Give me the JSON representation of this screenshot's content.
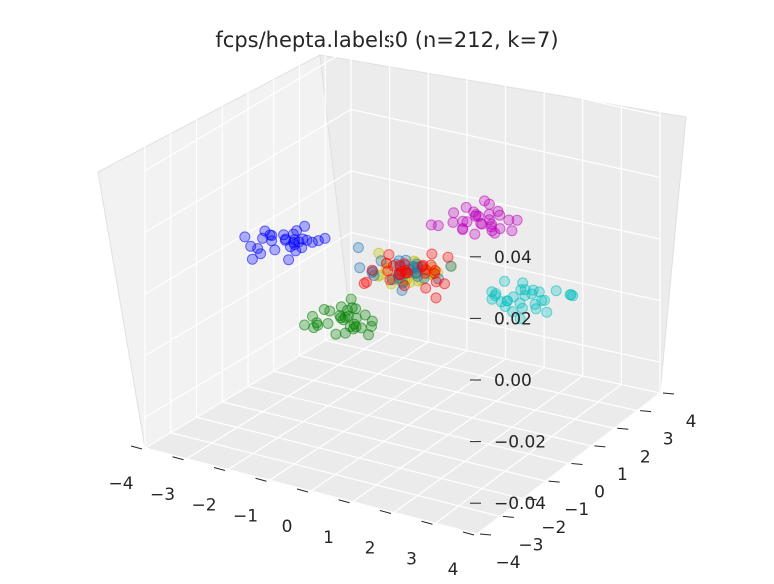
{
  "chart_data": {
    "type": "scatter",
    "projection": "3d",
    "title": "fcps/hepta.labels0 (n=212, k=7)",
    "xlim": [
      -4,
      4
    ],
    "ylim": [
      -4,
      4
    ],
    "zlim": [
      -0.05,
      0.05
    ],
    "x_ticks": [
      "−4",
      "−3",
      "−2",
      "−1",
      "0",
      "1",
      "2",
      "3",
      "4"
    ],
    "y_ticks": [
      "−4",
      "−3",
      "−2",
      "−1",
      "0",
      "1",
      "2",
      "3",
      "4"
    ],
    "z_ticks": [
      "0.04",
      "0.02",
      "0.00",
      "−0.02",
      "−0.04"
    ],
    "grid": true,
    "marker_alpha": 0.3,
    "z_value_all_points": 0.0,
    "clusters": [
      {
        "color": "#0000ff",
        "center": [
          -3,
          0
        ],
        "count": 30
      },
      {
        "color": "#00bfbf",
        "center": [
          3,
          0
        ],
        "count": 30
      },
      {
        "color": "#008000",
        "center": [
          0,
          -3
        ],
        "count": 30
      },
      {
        "color": "#bf00bf",
        "center": [
          0,
          3
        ],
        "count": 30
      },
      {
        "color": "#bfbf00",
        "center": [
          0,
          0
        ],
        "count": 32
      },
      {
        "color": "#1f77b4",
        "center": [
          0,
          0
        ],
        "count": 30
      },
      {
        "color": "#ff0000",
        "center": [
          0,
          0
        ],
        "count": 30
      }
    ]
  }
}
